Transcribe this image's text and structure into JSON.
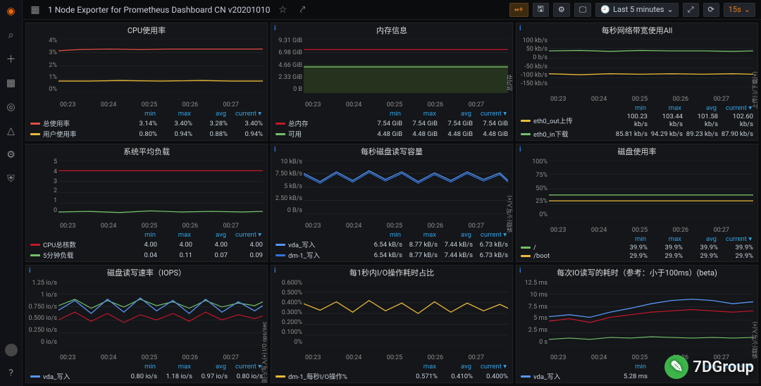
{
  "header": {
    "title": "1 Node Exporter for Prometheus Dashboard CN v20201010",
    "timeRange": "Last 5 minutes",
    "refresh": "15s"
  },
  "colors": {
    "panel_bg": "#141619",
    "grid": "#2c3235",
    "text": "#8e8e8e",
    "blue_header": "#33a2e5"
  },
  "xticks": [
    "00:23",
    "00:24",
    "00:25",
    "00:26",
    "00:27"
  ],
  "panels": [
    {
      "id": "cpu",
      "title": "CPU使用率",
      "type": "line",
      "ylabels": [
        "4%",
        "3%",
        "2%",
        "1%",
        "0%"
      ],
      "series": [
        {
          "name": "总使用率",
          "color": "#e24d42",
          "vals": [
            "3.14%",
            "3.40%",
            "3.28%",
            "3.40%"
          ],
          "pts": [
            [
              0,
              22
            ],
            [
              10,
              20
            ],
            [
              25,
              19
            ],
            [
              40,
              20
            ],
            [
              55,
              19
            ],
            [
              70,
              19
            ],
            [
              85,
              19
            ],
            [
              100,
              19
            ]
          ]
        },
        {
          "name": "用户使用率",
          "color": "#eab839",
          "vals": [
            "0.80%",
            "0.94%",
            "0.88%",
            "0.94%"
          ],
          "pts": [
            [
              0,
              78
            ],
            [
              15,
              78
            ],
            [
              30,
              77
            ],
            [
              50,
              78
            ],
            [
              70,
              77
            ],
            [
              85,
              78
            ],
            [
              100,
              78
            ]
          ]
        }
      ]
    },
    {
      "id": "mem",
      "title": "内存信息",
      "type": "area",
      "info": true,
      "ylabels": [
        "9.31 GiB",
        "6.98 GiB",
        "4.66 GiB",
        "2.33 GiB",
        "0 B"
      ],
      "rlabel": "总内存",
      "series": [
        {
          "name": "总内存",
          "color": "#c4162a",
          "vals": [
            "7.54 GiB",
            "7.54 GiB",
            "7.54 GiB",
            "7.54 GiB"
          ],
          "pts": [
            [
              0,
              20
            ],
            [
              100,
              20
            ]
          ],
          "fill": false
        },
        {
          "name": "可用",
          "color": "#73bf69",
          "vals": [
            "4.48 GiB",
            "4.48 GiB",
            "4.48 GiB",
            "4.48 GiB"
          ],
          "pts": [
            [
              0,
              52
            ],
            [
              100,
              52
            ]
          ],
          "fill": true,
          "fillColor": "#2a3a1f",
          "fillTop": 48
        }
      ]
    },
    {
      "id": "net",
      "title": "每秒网络带宽使用All",
      "type": "line",
      "info": true,
      "ylabels": [
        "100 kb/s",
        "50 kb/s",
        "0 b/s",
        "-50 kb/s",
        "-100 kb/s",
        "-150 kb/s"
      ],
      "rlabel": "上传(-)/下载(+)",
      "series": [
        {
          "name": "eth0_out上传",
          "color": "#eab839",
          "vals": [
            "100.23 kb/s",
            "103.44 kb/s",
            "101.58 kb/s",
            "102.60 kb/s"
          ],
          "pts": [
            [
              0,
              72
            ],
            [
              15,
              74
            ],
            [
              30,
              72
            ],
            [
              45,
              73
            ],
            [
              60,
              72
            ],
            [
              75,
              73
            ],
            [
              90,
              72
            ],
            [
              100,
              73
            ]
          ]
        },
        {
          "name": "eth0_in下载",
          "color": "#73bf69",
          "vals": [
            "85.81 kb/s",
            "94.29 kb/s",
            "89.23 kb/s",
            "87.90 kb/s"
          ],
          "pts": [
            [
              0,
              25
            ],
            [
              15,
              24
            ],
            [
              30,
              26
            ],
            [
              45,
              24
            ],
            [
              60,
              25
            ],
            [
              75,
              25
            ],
            [
              90,
              26
            ],
            [
              100,
              25
            ]
          ]
        }
      ]
    },
    {
      "id": "load",
      "title": "系统平均负载",
      "type": "line",
      "ylabels": [
        "5",
        "4",
        "3",
        "2",
        "1",
        "0"
      ],
      "series": [
        {
          "name": "CPU总核数",
          "color": "#c4162a",
          "vals": [
            "4.00",
            "4.00",
            "4.00",
            "4.00"
          ],
          "pts": [
            [
              0,
              20
            ],
            [
              100,
              20
            ]
          ]
        },
        {
          "name": "5分钟负载",
          "color": "#73bf69",
          "vals": [
            "0.04",
            "0.11",
            "0.07",
            "0.09"
          ],
          "pts": [
            [
              0,
              96
            ],
            [
              15,
              95
            ],
            [
              30,
              97
            ],
            [
              45,
              94
            ],
            [
              60,
              96
            ],
            [
              75,
              95
            ],
            [
              90,
              96
            ],
            [
              100,
              95
            ]
          ]
        }
      ]
    },
    {
      "id": "diskrw",
      "title": "每秒磁盘读写容量",
      "type": "line",
      "info": true,
      "ylabels": [
        "10 kB/s",
        "7.50 kB/s",
        "5 kB/s",
        "2.50 kB/s",
        "0 B/s"
      ],
      "rlabel": "读取(-)/写入(+)",
      "series": [
        {
          "name": "vda_写入",
          "color": "#5794f2",
          "vals": [
            "6.54 kB/s",
            "8.77 kB/s",
            "7.44 kB/s",
            "6.73 kB/s"
          ],
          "pts": [
            [
              0,
              25
            ],
            [
              8,
              40
            ],
            [
              16,
              22
            ],
            [
              24,
              38
            ],
            [
              32,
              20
            ],
            [
              40,
              36
            ],
            [
              48,
              22
            ],
            [
              56,
              40
            ],
            [
              64,
              24
            ],
            [
              72,
              38
            ],
            [
              80,
              22
            ],
            [
              88,
              36
            ],
            [
              96,
              24
            ],
            [
              100,
              38
            ]
          ]
        },
        {
          "name": "dm-1_写入",
          "color": "#3274d9",
          "vals": [
            "6.54 kB/s",
            "8.77 kB/s",
            "7.44 kB/s",
            "6.73 kB/s"
          ],
          "pts": [
            [
              0,
              28
            ],
            [
              8,
              43
            ],
            [
              16,
              25
            ],
            [
              24,
              41
            ],
            [
              32,
              23
            ],
            [
              40,
              39
            ],
            [
              48,
              25
            ],
            [
              56,
              43
            ],
            [
              64,
              27
            ],
            [
              72,
              41
            ],
            [
              80,
              25
            ],
            [
              88,
              39
            ],
            [
              96,
              27
            ],
            [
              100,
              41
            ]
          ]
        }
      ]
    },
    {
      "id": "diskuse",
      "title": "磁盘使用率",
      "type": "line",
      "info": true,
      "ylabels": [
        "100%",
        "75%",
        "50%",
        "25%",
        "0%"
      ],
      "series": [
        {
          "name": "/",
          "color": "#73bf69",
          "vals": [
            "39.9%",
            "39.9%",
            "39.9%",
            "39.9%"
          ],
          "pts": [
            [
              0,
              60
            ],
            [
              100,
              60
            ]
          ]
        },
        {
          "name": "/boot",
          "color": "#eab839",
          "vals": [
            "29.9%",
            "29.9%",
            "29.9%",
            "29.9%"
          ],
          "pts": [
            [
              0,
              70
            ],
            [
              100,
              70
            ]
          ]
        }
      ]
    },
    {
      "id": "iops",
      "title": "磁盘读写速率（IOPS）",
      "type": "line",
      "info": true,
      "ylabels": [
        "1.25 io/s",
        "1 io/s",
        "0.750 io/s",
        "0.500 io/s",
        "0.250 io/s",
        "0 io/s"
      ],
      "rlabel": "读取(-)/写入(+) I/O ops/sec",
      "stat_cols": [
        "min",
        "max",
        "avg",
        "current"
      ],
      "series": [
        {
          "name": "vda_写入",
          "color": "#5794f2",
          "vals": [
            "0.80 io/s",
            "1.18 io/s",
            "0.97 io/s",
            "0.80 io/s"
          ],
          "pts": [
            [
              0,
              45
            ],
            [
              8,
              30
            ],
            [
              16,
              50
            ],
            [
              24,
              28
            ],
            [
              32,
              48
            ],
            [
              40,
              26
            ],
            [
              48,
              46
            ],
            [
              56,
              30
            ],
            [
              64,
              50
            ],
            [
              72,
              28
            ],
            [
              80,
              48
            ],
            [
              88,
              32
            ],
            [
              96,
              46
            ],
            [
              100,
              38
            ]
          ]
        }
      ],
      "extra": [
        {
          "color": "#c4162a",
          "pts": [
            [
              0,
              60
            ],
            [
              8,
              48
            ],
            [
              16,
              62
            ],
            [
              24,
              50
            ],
            [
              32,
              64
            ],
            [
              40,
              52
            ],
            [
              48,
              60
            ],
            [
              56,
              50
            ],
            [
              64,
              62
            ],
            [
              72,
              48
            ],
            [
              80,
              60
            ],
            [
              88,
              52
            ],
            [
              96,
              58
            ],
            [
              100,
              54
            ]
          ]
        },
        {
          "color": "#73bf69",
          "pts": [
            [
              0,
              38
            ],
            [
              8,
              28
            ],
            [
              16,
              42
            ],
            [
              24,
              30
            ],
            [
              32,
              40
            ],
            [
              40,
              28
            ],
            [
              48,
              38
            ],
            [
              56,
              32
            ],
            [
              64,
              42
            ],
            [
              72,
              30
            ],
            [
              80,
              40
            ],
            [
              88,
              34
            ],
            [
              96,
              38
            ],
            [
              100,
              32
            ]
          ]
        }
      ]
    },
    {
      "id": "iotime",
      "title": "每1秒内I/O操作耗时占比",
      "type": "line",
      "info": true,
      "ylabels": [
        "0.600%",
        "0.500%",
        "0.400%",
        "0.300%",
        "0.200%",
        "0.100%",
        "0%"
      ],
      "stat_cols": [
        "max",
        "avg",
        "current"
      ],
      "series": [
        {
          "name": "dm-1_每秒I/O操作%",
          "color": "#eab839",
          "vals": [
            "0.571%",
            "0.410%",
            "0.400%"
          ],
          "pts": [
            [
              0,
              35
            ],
            [
              8,
              45
            ],
            [
              16,
              32
            ],
            [
              24,
              48
            ],
            [
              32,
              30
            ],
            [
              40,
              46
            ],
            [
              48,
              34
            ],
            [
              56,
              50
            ],
            [
              64,
              32
            ],
            [
              72,
              48
            ],
            [
              80,
              34
            ],
            [
              88,
              46
            ],
            [
              96,
              36
            ],
            [
              100,
              42
            ]
          ]
        }
      ]
    },
    {
      "id": "iolat",
      "title": "每次IO读写的耗时（参考：小于100ms）(beta)",
      "type": "line",
      "info": true,
      "ylabels": [
        "12.5 ms",
        "10 ms",
        "7.5 ms",
        "5 ms",
        "2.5 ms",
        "0 s"
      ],
      "rlabel": "读取(-)/写入(+)",
      "stat_cols": [
        "min",
        "max",
        "avg",
        "current"
      ],
      "series": [
        {
          "name": "vda_写入",
          "color": "#5794f2",
          "vals": [
            "5.28 ms",
            "",
            "",
            ""
          ],
          "hideVals": true,
          "pts": [
            [
              0,
              55
            ],
            [
              10,
              52
            ],
            [
              20,
              56
            ],
            [
              30,
              48
            ],
            [
              40,
              42
            ],
            [
              50,
              35
            ],
            [
              60,
              30
            ],
            [
              70,
              28
            ],
            [
              80,
              30
            ],
            [
              90,
              35
            ],
            [
              100,
              32
            ]
          ]
        }
      ],
      "extra": [
        {
          "color": "#c4162a",
          "pts": [
            [
              0,
              62
            ],
            [
              10,
              58
            ],
            [
              20,
              64
            ],
            [
              30,
              56
            ],
            [
              40,
              52
            ],
            [
              50,
              48
            ],
            [
              60,
              46
            ],
            [
              70,
              44
            ],
            [
              80,
              46
            ],
            [
              90,
              48
            ],
            [
              100,
              46
            ]
          ]
        },
        {
          "color": "#73bf69",
          "pts": [
            [
              0,
              90
            ],
            [
              10,
              88
            ],
            [
              20,
              90
            ],
            [
              30,
              87
            ],
            [
              40,
              88
            ],
            [
              50,
              86
            ],
            [
              60,
              87
            ],
            [
              70,
              88
            ],
            [
              80,
              87
            ],
            [
              90,
              88
            ],
            [
              100,
              87
            ]
          ]
        }
      ]
    }
  ],
  "watermark": "7DGroup"
}
